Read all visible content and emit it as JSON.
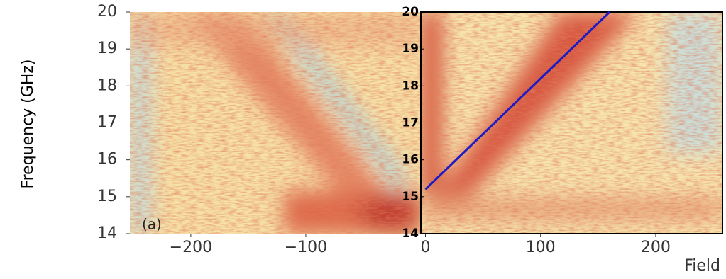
{
  "chart_data": [
    {
      "type": "heatmap",
      "y_label": "Frequency (GHz)",
      "annotation": "(a)",
      "xlim": [
        -253,
        0
      ],
      "xticks": [
        {
          "value": -200,
          "label": "−200"
        },
        {
          "value": -100,
          "label": "−100"
        }
      ],
      "ylim": [
        14,
        20
      ],
      "yticks": [
        14,
        15,
        16,
        17,
        18,
        19,
        20
      ]
    },
    {
      "type": "line",
      "x_label": "Field",
      "xlim": [
        -4,
        258
      ],
      "xticks": [
        0,
        100,
        200
      ],
      "ylim": [
        14,
        20
      ],
      "yticks": [
        14,
        15,
        16,
        17,
        18,
        19,
        20
      ],
      "series": [
        {
          "color": "#1c1cc4",
          "x": [
            0,
            160
          ],
          "values": [
            15.2,
            20
          ]
        }
      ]
    }
  ]
}
